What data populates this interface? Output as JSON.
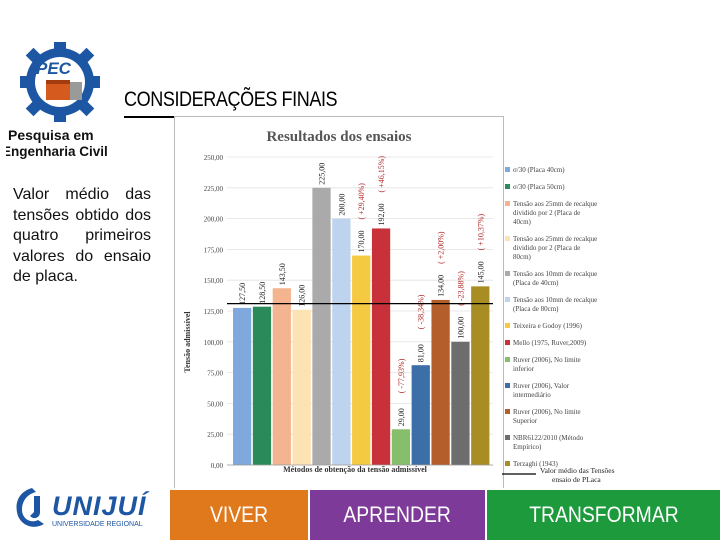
{
  "header": {
    "logo_badge": "PEC",
    "logo_line1": "Pesquisa em",
    "logo_line2": "Engenharia Civil",
    "title": "CONSIDERAÇÕES FINAIS"
  },
  "body_text": "Valor médio das tensões obtido dos quatro primeiros valores do ensaio de placa.",
  "chart_data": {
    "type": "bar",
    "title": "Resultados dos ensaios",
    "xlabel": "Métodos de obtenção da tensão admissível",
    "ylabel": "Tensão admissível",
    "ylim": [
      0,
      250
    ],
    "yticks": [
      "0,00",
      "25,00",
      "50,00",
      "75,00",
      "100,00",
      "125,00",
      "150,00",
      "175,00",
      "200,00",
      "225,00",
      "250,00"
    ],
    "mean_line_value": 131,
    "mean_line_label": "Valor médio das Tensões ensaio de PLaca",
    "series": [
      {
        "name": "σ/30 (Placa 40cm)",
        "value": 127.5,
        "label": "127,50",
        "note": "",
        "color": "#7fa8dc"
      },
      {
        "name": "σ/30 (Placa 50cm)",
        "value": 128.5,
        "label": "128,50",
        "note": "",
        "color": "#2b8a5a"
      },
      {
        "name": "Tensão aos 25mm de recalque dividido por 2 (Placa de 40cm)",
        "value": 143.5,
        "label": "143,50",
        "note": "",
        "color": "#f3b48f"
      },
      {
        "name": "Tensão aos 25mm de recalque dividido por 2 (Placa de 80cm)",
        "value": 126.0,
        "label": "126,00",
        "note": "",
        "color": "#fde3b3"
      },
      {
        "name": "Tensão aos 10mm de recalque (Placa de 40cm)",
        "value": 225.0,
        "label": "225,00",
        "note": "",
        "color": "#aaaaaa"
      },
      {
        "name": "Tensão aos 10mm de recalque (Placa de 80cm)",
        "value": 200.0,
        "label": "200,00",
        "note": "",
        "color": "#bdd3ee"
      },
      {
        "name": "Teixeira e Godoy (1996)",
        "value": 170.0,
        "label": "170,00",
        "note": "( +29,40%)",
        "color": "#f6c943"
      },
      {
        "name": "Mello (1975, Ruver,2009)",
        "value": 192.0,
        "label": "192,00",
        "note": "( +46,15%)",
        "color": "#c8303a"
      },
      {
        "name": "Ruver (2006), No limite inferior",
        "value": 29.0,
        "label": "29,00",
        "note": "( -77,93%)",
        "color": "#86bf6b"
      },
      {
        "name": "Ruver (2006), Valor intermediário",
        "value": 81.0,
        "label": "81,00",
        "note": "( -38,34%)",
        "color": "#3c6fa8"
      },
      {
        "name": "Ruver (2006), No limite Superior",
        "value": 134.0,
        "label": "134,00",
        "note": "( +2,00%)",
        "color": "#b45e2c"
      },
      {
        "name": "NBR6122/2010 (Método Empírico)",
        "value": 100.0,
        "label": "100,00",
        "note": "( -23,88%)",
        "color": "#6d6d6d"
      },
      {
        "name": "Terzaghi (1943)",
        "value": 145.0,
        "label": "145,00",
        "note": "( +10,37%)",
        "color": "#a88d24"
      }
    ]
  },
  "footer": {
    "logo_text": "UNIJUÍ",
    "logo_subtext": "UNIVERSIDADE REGIONAL",
    "viver": "VIVER",
    "aprender": "APRENDER",
    "transformar": "TRANSFORMAR"
  }
}
